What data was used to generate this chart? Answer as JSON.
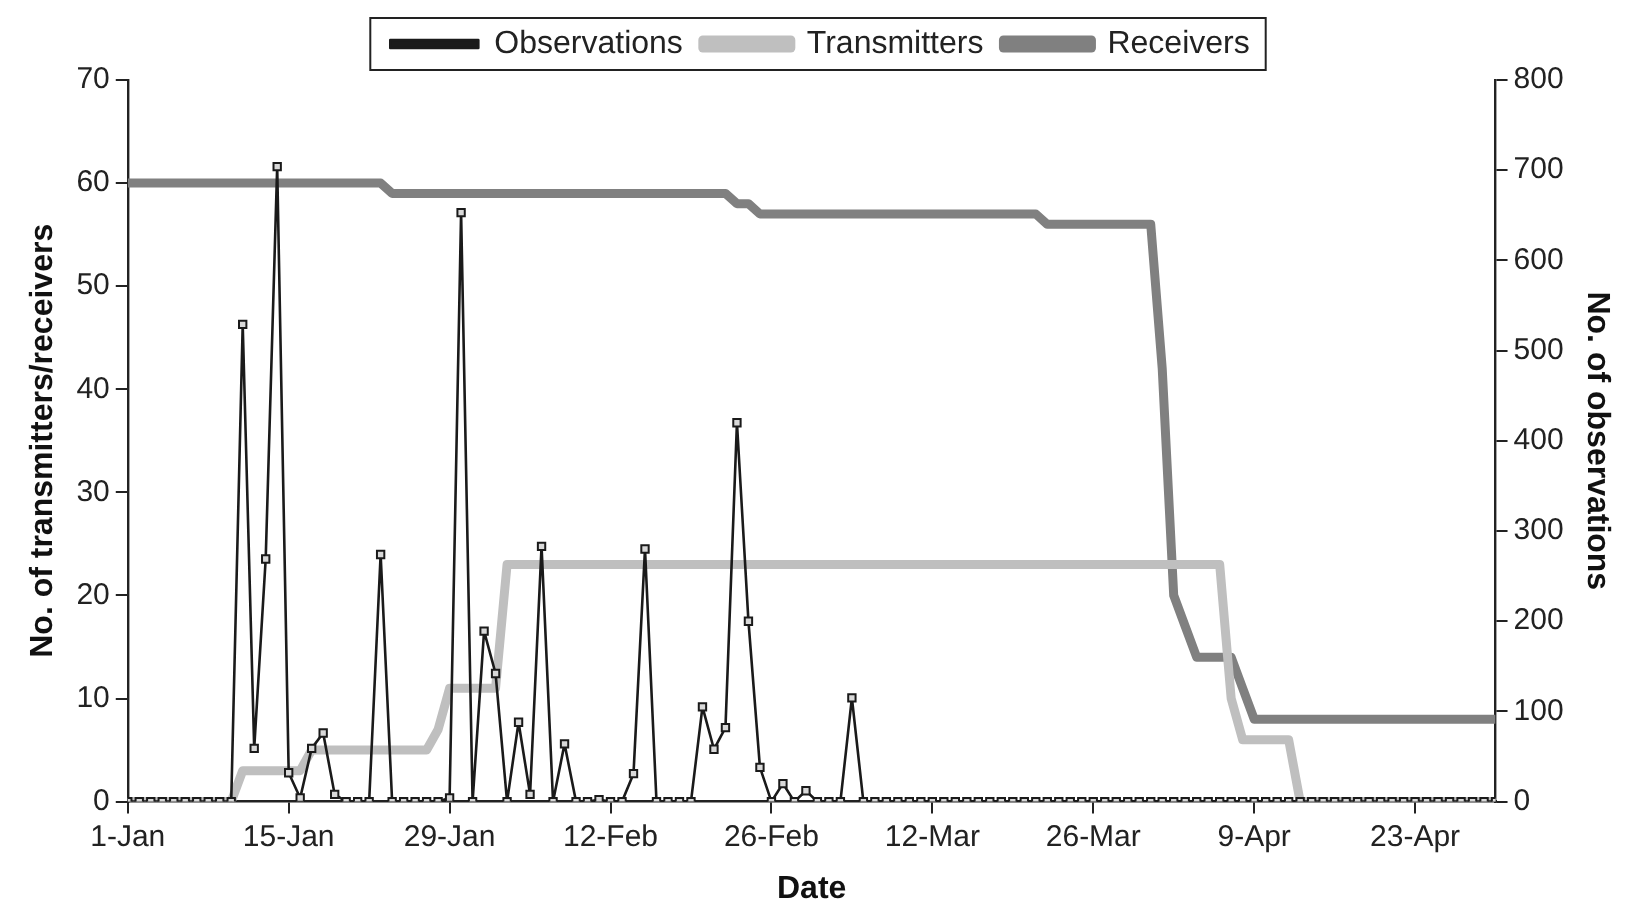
{
  "chart_data": {
    "type": "line",
    "xlabel": "Date",
    "ylabel": "No. of transmitters/receivers",
    "y2label": "No. of observations",
    "x": [
      "--01-01",
      "--01-02",
      "--01-03",
      "--01-04",
      "--01-05",
      "--01-06",
      "--01-07",
      "--01-08",
      "--01-09",
      "--01-10",
      "--01-11",
      "--01-12",
      "--01-13",
      "--01-14",
      "--01-15",
      "--01-16",
      "--01-17",
      "--01-18",
      "--01-19",
      "--01-20",
      "--01-21",
      "--01-22",
      "--01-23",
      "--01-24",
      "--01-25",
      "--01-26",
      "--01-27",
      "--01-28",
      "--01-29",
      "--01-30",
      "--01-31",
      "--02-01",
      "--02-02",
      "--02-03",
      "--02-04",
      "--02-05",
      "--02-06",
      "--02-07",
      "--02-08",
      "--02-09",
      "--02-10",
      "--02-11",
      "--02-12",
      "--02-13",
      "--02-14",
      "--02-15",
      "--02-16",
      "--02-17",
      "--02-18",
      "--02-19",
      "--02-20",
      "--02-21",
      "--02-22",
      "--02-23",
      "--02-24",
      "--02-25",
      "--02-26",
      "--02-27",
      "--02-28",
      "--03-01",
      "--03-02",
      "--03-03",
      "--03-04",
      "--03-05",
      "--03-06",
      "--03-07",
      "--03-08",
      "--03-09",
      "--03-10",
      "--03-11",
      "--03-12",
      "--03-13",
      "--03-14",
      "--03-15",
      "--03-16",
      "--03-17",
      "--03-18",
      "--03-19",
      "--03-20",
      "--03-21",
      "--03-22",
      "--03-23",
      "--03-24",
      "--03-25",
      "--03-26",
      "--03-27",
      "--03-28",
      "--03-29",
      "--03-30",
      "--03-31",
      "--04-01",
      "--04-02",
      "--04-03",
      "--04-04",
      "--04-05",
      "--04-06",
      "--04-07",
      "--04-08",
      "--04-09",
      "--04-10",
      "--04-11",
      "--04-12",
      "--04-13",
      "--04-14",
      "--04-15",
      "--04-16",
      "--04-17",
      "--04-18",
      "--04-19",
      "--04-20",
      "--04-21",
      "--04-22",
      "--04-23",
      "--04-24",
      "--04-25",
      "--04-26",
      "--04-27",
      "--04-28",
      "--04-29",
      "--04-30"
    ],
    "series": [
      {
        "name": "Transmitters",
        "color": "#bfbfbf",
        "marker": "none",
        "values": [
          0,
          0,
          0,
          0,
          0,
          0,
          0,
          0,
          0,
          0,
          3,
          3,
          3,
          3,
          3,
          3,
          5,
          5,
          5,
          5,
          5,
          5,
          5,
          5,
          5,
          5,
          5,
          7,
          11,
          11,
          11,
          11,
          11,
          23,
          23,
          23,
          23,
          23,
          23,
          23,
          23,
          23,
          23,
          23,
          23,
          23,
          23,
          23,
          23,
          23,
          23,
          23,
          23,
          23,
          23,
          23,
          23,
          23,
          23,
          23,
          23,
          23,
          23,
          23,
          23,
          23,
          23,
          23,
          23,
          23,
          23,
          23,
          23,
          23,
          23,
          23,
          23,
          23,
          23,
          23,
          23,
          23,
          23,
          23,
          23,
          23,
          23,
          23,
          23,
          23,
          23,
          23,
          23,
          23,
          23,
          23,
          10,
          6,
          6,
          6,
          6,
          6,
          0,
          0,
          0,
          0,
          0,
          0,
          0,
          0,
          0,
          0,
          0,
          0,
          0,
          0,
          0,
          0,
          0,
          0
        ]
      },
      {
        "name": "Receivers",
        "color": "#808080",
        "marker": "none",
        "values": [
          60,
          60,
          60,
          60,
          60,
          60,
          60,
          60,
          60,
          60,
          60,
          60,
          60,
          60,
          60,
          60,
          60,
          60,
          60,
          60,
          60,
          60,
          60,
          59,
          59,
          59,
          59,
          59,
          59,
          59,
          59,
          59,
          59,
          59,
          59,
          59,
          59,
          59,
          59,
          59,
          59,
          59,
          59,
          59,
          59,
          59,
          59,
          59,
          59,
          59,
          59,
          59,
          59,
          58,
          58,
          57,
          57,
          57,
          57,
          57,
          57,
          57,
          57,
          57,
          57,
          57,
          57,
          57,
          57,
          57,
          57,
          57,
          57,
          57,
          57,
          57,
          57,
          57,
          57,
          57,
          56,
          56,
          56,
          56,
          56,
          56,
          56,
          56,
          56,
          56,
          42,
          20,
          17,
          14,
          14,
          14,
          14,
          11,
          8,
          8,
          8,
          8,
          8,
          8,
          8,
          8,
          8,
          8,
          8,
          8,
          8,
          8,
          8,
          8,
          8,
          8,
          8,
          8,
          8,
          8
        ]
      },
      {
        "name": "Observations",
        "color": "#1a1a1a",
        "marker": "square",
        "axis": "y2",
        "values": [
          0,
          0,
          0,
          0,
          0,
          0,
          0,
          0,
          0,
          0,
          529,
          59,
          269,
          704,
          32,
          4,
          59,
          76,
          8,
          0,
          0,
          0,
          274,
          0,
          0,
          0,
          0,
          0,
          4,
          653,
          0,
          189,
          142,
          0,
          88,
          8,
          283,
          0,
          64,
          0,
          0,
          2,
          0,
          0,
          31,
          280,
          0,
          0,
          0,
          0,
          105,
          58,
          82,
          420,
          200,
          38,
          0,
          20,
          0,
          12,
          0,
          0,
          0,
          115,
          0,
          0,
          0,
          0,
          0,
          0,
          0,
          0,
          0,
          0,
          0,
          0,
          0,
          0,
          0,
          0,
          0,
          0,
          0,
          0,
          0,
          0,
          0,
          0,
          0,
          0,
          0,
          0,
          0,
          0,
          0,
          0,
          0,
          0,
          0,
          0,
          0,
          0,
          0,
          0,
          0,
          0,
          0,
          0,
          0,
          0,
          0,
          0,
          0,
          0,
          0,
          0,
          0,
          0,
          0,
          0
        ]
      }
    ],
    "xlim": [
      "--01-01",
      "--04-30"
    ],
    "xticks": [
      {
        "value": "--01-01",
        "label": "1-Jan"
      },
      {
        "value": "--01-15",
        "label": "15-Jan"
      },
      {
        "value": "--01-29",
        "label": "29-Jan"
      },
      {
        "value": "--02-12",
        "label": "12-Feb"
      },
      {
        "value": "--02-26",
        "label": "26-Feb"
      },
      {
        "value": "--03-12",
        "label": "12-Mar"
      },
      {
        "value": "--03-26",
        "label": "26-Mar"
      },
      {
        "value": "--04-09",
        "label": "9-Apr"
      },
      {
        "value": "--04-23",
        "label": "23-Apr"
      }
    ],
    "ylim": [
      0,
      70
    ],
    "yticks": [
      0,
      10,
      20,
      30,
      40,
      50,
      60,
      70
    ],
    "y2lim": [
      0,
      800
    ],
    "y2ticks": [
      0,
      100,
      200,
      300,
      400,
      500,
      600,
      700,
      800
    ],
    "grid": false,
    "legend": "top"
  }
}
